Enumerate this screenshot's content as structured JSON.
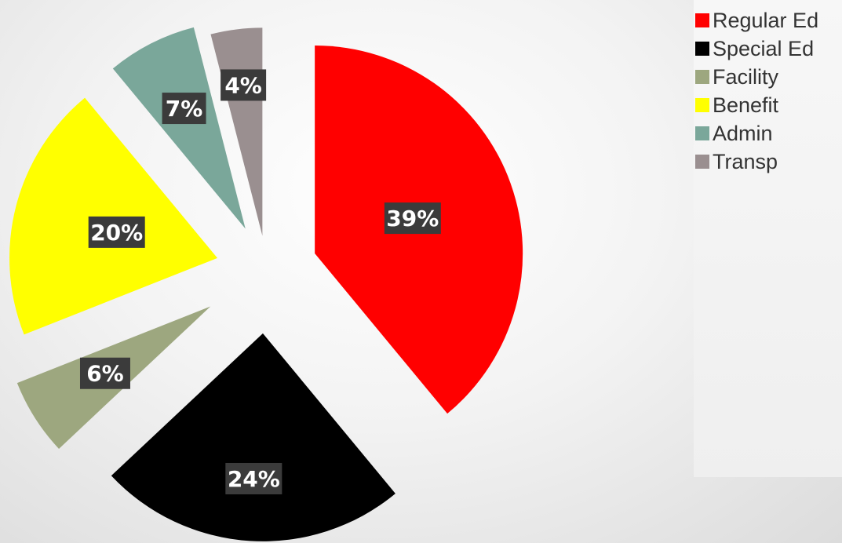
{
  "chart_data": {
    "type": "pie",
    "exploded": true,
    "legend_position": "top-right",
    "categories": [
      "Regular Ed",
      "Special Ed",
      "Facility",
      "Benefit",
      "Admin",
      "Transp"
    ],
    "values": [
      39,
      24,
      6,
      20,
      7,
      4
    ],
    "data_labels": [
      "39%",
      "24%",
      "6%",
      "20%",
      "7%",
      "4%"
    ],
    "colors": [
      "#ff0000",
      "#000000",
      "#9da77f",
      "#ffff00",
      "#7aa79a",
      "#9a8f90"
    ],
    "label_style": {
      "background": "#3b3b3b",
      "text": "#ffffff"
    }
  }
}
